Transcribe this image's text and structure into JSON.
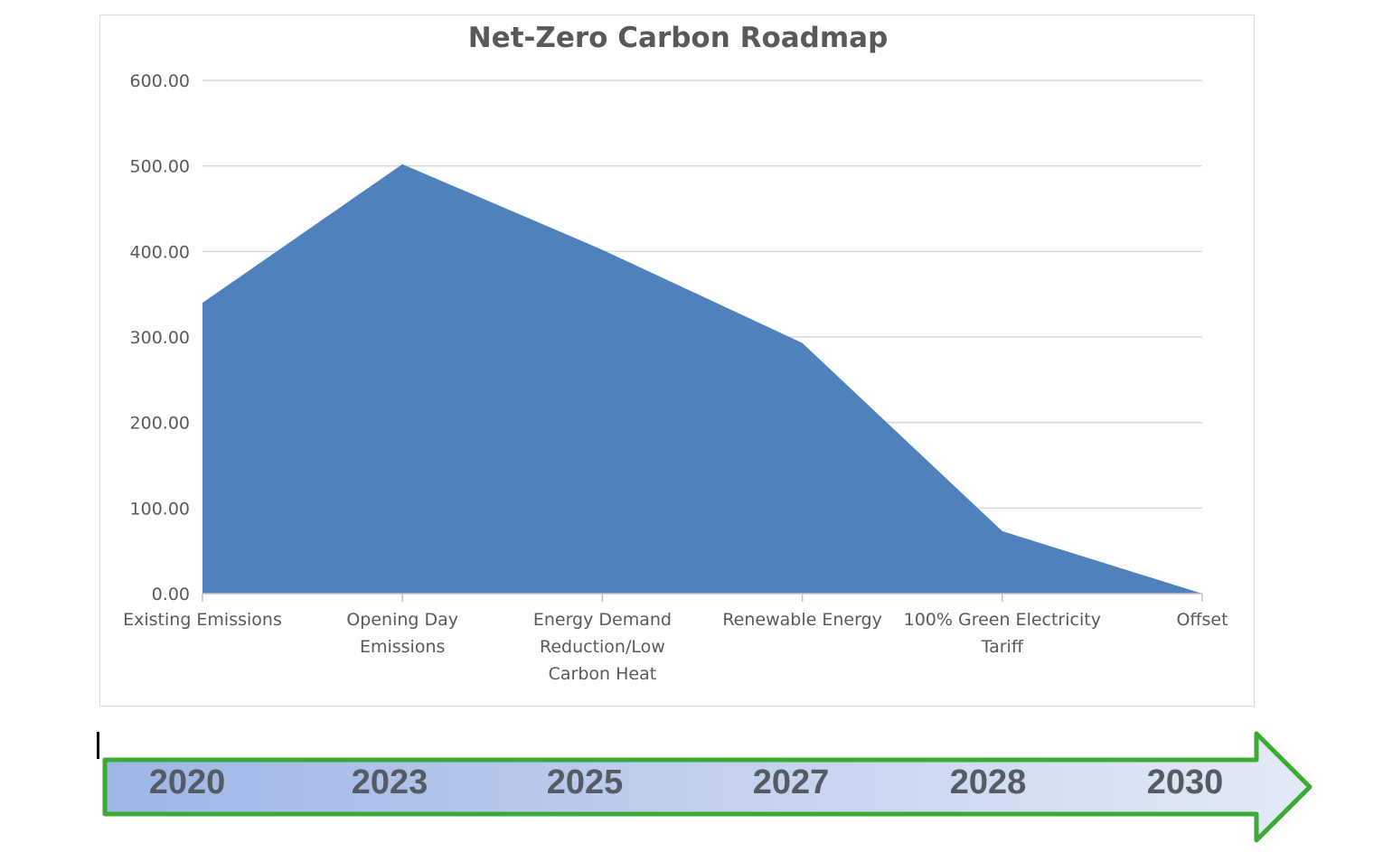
{
  "colors": {
    "area_fill": "#4f81bd",
    "arrow_stroke": "#3aaa35",
    "arrow_fill_start": "#9db6e6",
    "arrow_fill_end": "#e3eaf6"
  },
  "chart_data": {
    "type": "area",
    "title": "Net-Zero Carbon Roadmap",
    "xlabel": "",
    "ylabel": "",
    "categories": [
      [
        "Existing Emissions"
      ],
      [
        "Opening Day",
        "Emissions"
      ],
      [
        "Energy Demand",
        "Reduction/Low",
        "Carbon Heat"
      ],
      [
        "Renewable Energy"
      ],
      [
        "100% Green Electricity",
        "Tariff"
      ],
      [
        "Offset"
      ]
    ],
    "series": [
      {
        "values": [
          340,
          502,
          402,
          293,
          73,
          0
        ]
      }
    ],
    "ylim": [
      0,
      600
    ],
    "yticks": [
      "0.00",
      "100.00",
      "200.00",
      "300.00",
      "400.00",
      "500.00",
      "600.00"
    ],
    "grid": true,
    "legend": "none"
  },
  "timeline": {
    "years": [
      "2020",
      "2023",
      "2025",
      "2027",
      "2028",
      "2030"
    ]
  }
}
